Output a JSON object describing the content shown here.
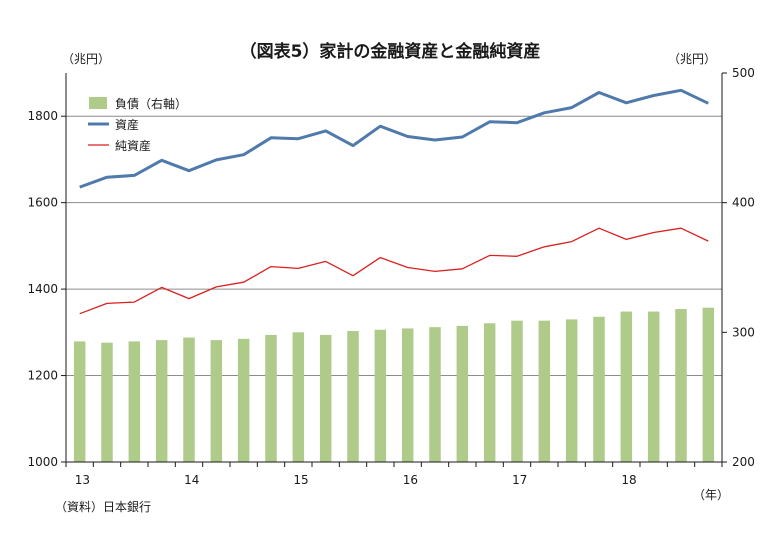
{
  "chart_data": {
    "type": "bar",
    "title": "（図表5）家計の金融資産と金融純資産",
    "left_axis_unit": "（兆円）",
    "right_axis_unit": "（兆円）",
    "x_axis_unit": "（年）",
    "source": "（資料）日本銀行",
    "left_ylim": [
      1000,
      1900
    ],
    "left_yticks": [
      1000,
      1200,
      1400,
      1600,
      1800
    ],
    "right_ylim": [
      200,
      500
    ],
    "right_yticks": [
      200,
      300,
      400,
      500
    ],
    "grid": true,
    "legend_position": "top-left",
    "x_year_labels": [
      "13",
      "14",
      "15",
      "16",
      "17",
      "18"
    ],
    "periods": [
      "13Q1",
      "13Q2",
      "13Q3",
      "13Q4",
      "14Q1",
      "14Q2",
      "14Q3",
      "14Q4",
      "15Q1",
      "15Q2",
      "15Q3",
      "15Q4",
      "16Q1",
      "16Q2",
      "16Q3",
      "16Q4",
      "17Q1",
      "17Q2",
      "17Q3",
      "17Q4",
      "18Q1",
      "18Q2",
      "18Q3",
      "18Q4"
    ],
    "series": [
      {
        "name": "負債（右軸）",
        "kind": "bar",
        "axis": "right",
        "color": "#aecb8a",
        "values": [
          293,
          292,
          293,
          294,
          296,
          294,
          295,
          298,
          300,
          298,
          301,
          302,
          303,
          304,
          305,
          307,
          309,
          309,
          310,
          312,
          316,
          316,
          318,
          319
        ]
      },
      {
        "name": "資産",
        "kind": "line",
        "axis": "left",
        "color": "#4f7aab",
        "values": [
          1636,
          1659,
          1663,
          1698,
          1674,
          1699,
          1711,
          1750,
          1748,
          1766,
          1732,
          1777,
          1753,
          1745,
          1752,
          1787,
          1785,
          1808,
          1820,
          1855,
          1831,
          1848,
          1860,
          1830
        ]
      },
      {
        "name": "純資産",
        "kind": "line",
        "axis": "left",
        "color": "#d9211f",
        "values": [
          1343,
          1367,
          1370,
          1404,
          1378,
          1405,
          1416,
          1452,
          1448,
          1464,
          1431,
          1473,
          1450,
          1441,
          1447,
          1478,
          1476,
          1498,
          1510,
          1541,
          1515,
          1531,
          1541,
          1511
        ]
      }
    ]
  }
}
